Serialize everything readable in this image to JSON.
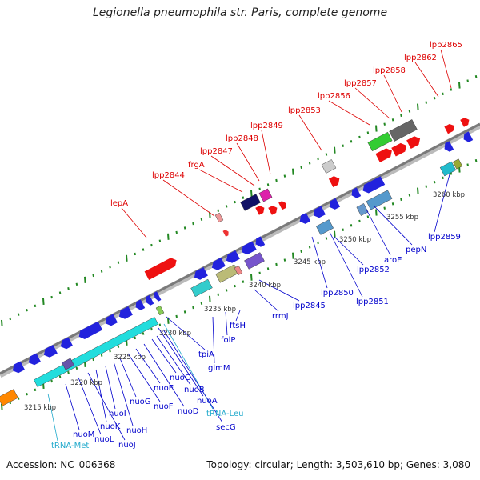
{
  "title": "Legionella pneumophila str. Paris, complete genome",
  "footer": {
    "accession": "Accession: NC_006368",
    "topology": "Topology: circular; Length: 3,503,610 bp; Genes: 3,080"
  },
  "colors": {
    "plus_label": "#dd0000",
    "minus_label": "#0000cc",
    "rna_label": "#22aacc",
    "backbone": "#777777",
    "tick": "#228822"
  },
  "kbp_labels": [
    "3215 kbp",
    "3220 kbp",
    "3225 kbp",
    "3230 kbp",
    "3235 kbp",
    "3240 kbp",
    "3245 kbp",
    "3250 kbp",
    "3255 kbp",
    "3260 kbp"
  ],
  "plus_genes": [
    "lepA",
    "lpp2844",
    "frgA",
    "lpp2847",
    "lpp2848",
    "lpp2849",
    "lpp2853",
    "lpp2856",
    "lpp2857",
    "lpp2858",
    "lpp2862",
    "lpp2865"
  ],
  "minus_genes": [
    "tRNA-Met",
    "nuoM",
    "nuoL",
    "nuoJ",
    "nuoK",
    "nuoI",
    "nuoH",
    "nuoG",
    "nuoF",
    "nuoE",
    "nuoD",
    "nuoC",
    "nuoB",
    "nuoA",
    "tRNA-Leu",
    "secG",
    "tpiA",
    "glmM",
    "folP",
    "ftsH",
    "rrmJ",
    "lpp2845",
    "lpp2850",
    "lpp2851",
    "lpp2852",
    "aroE",
    "pepN",
    "lpp2859"
  ]
}
